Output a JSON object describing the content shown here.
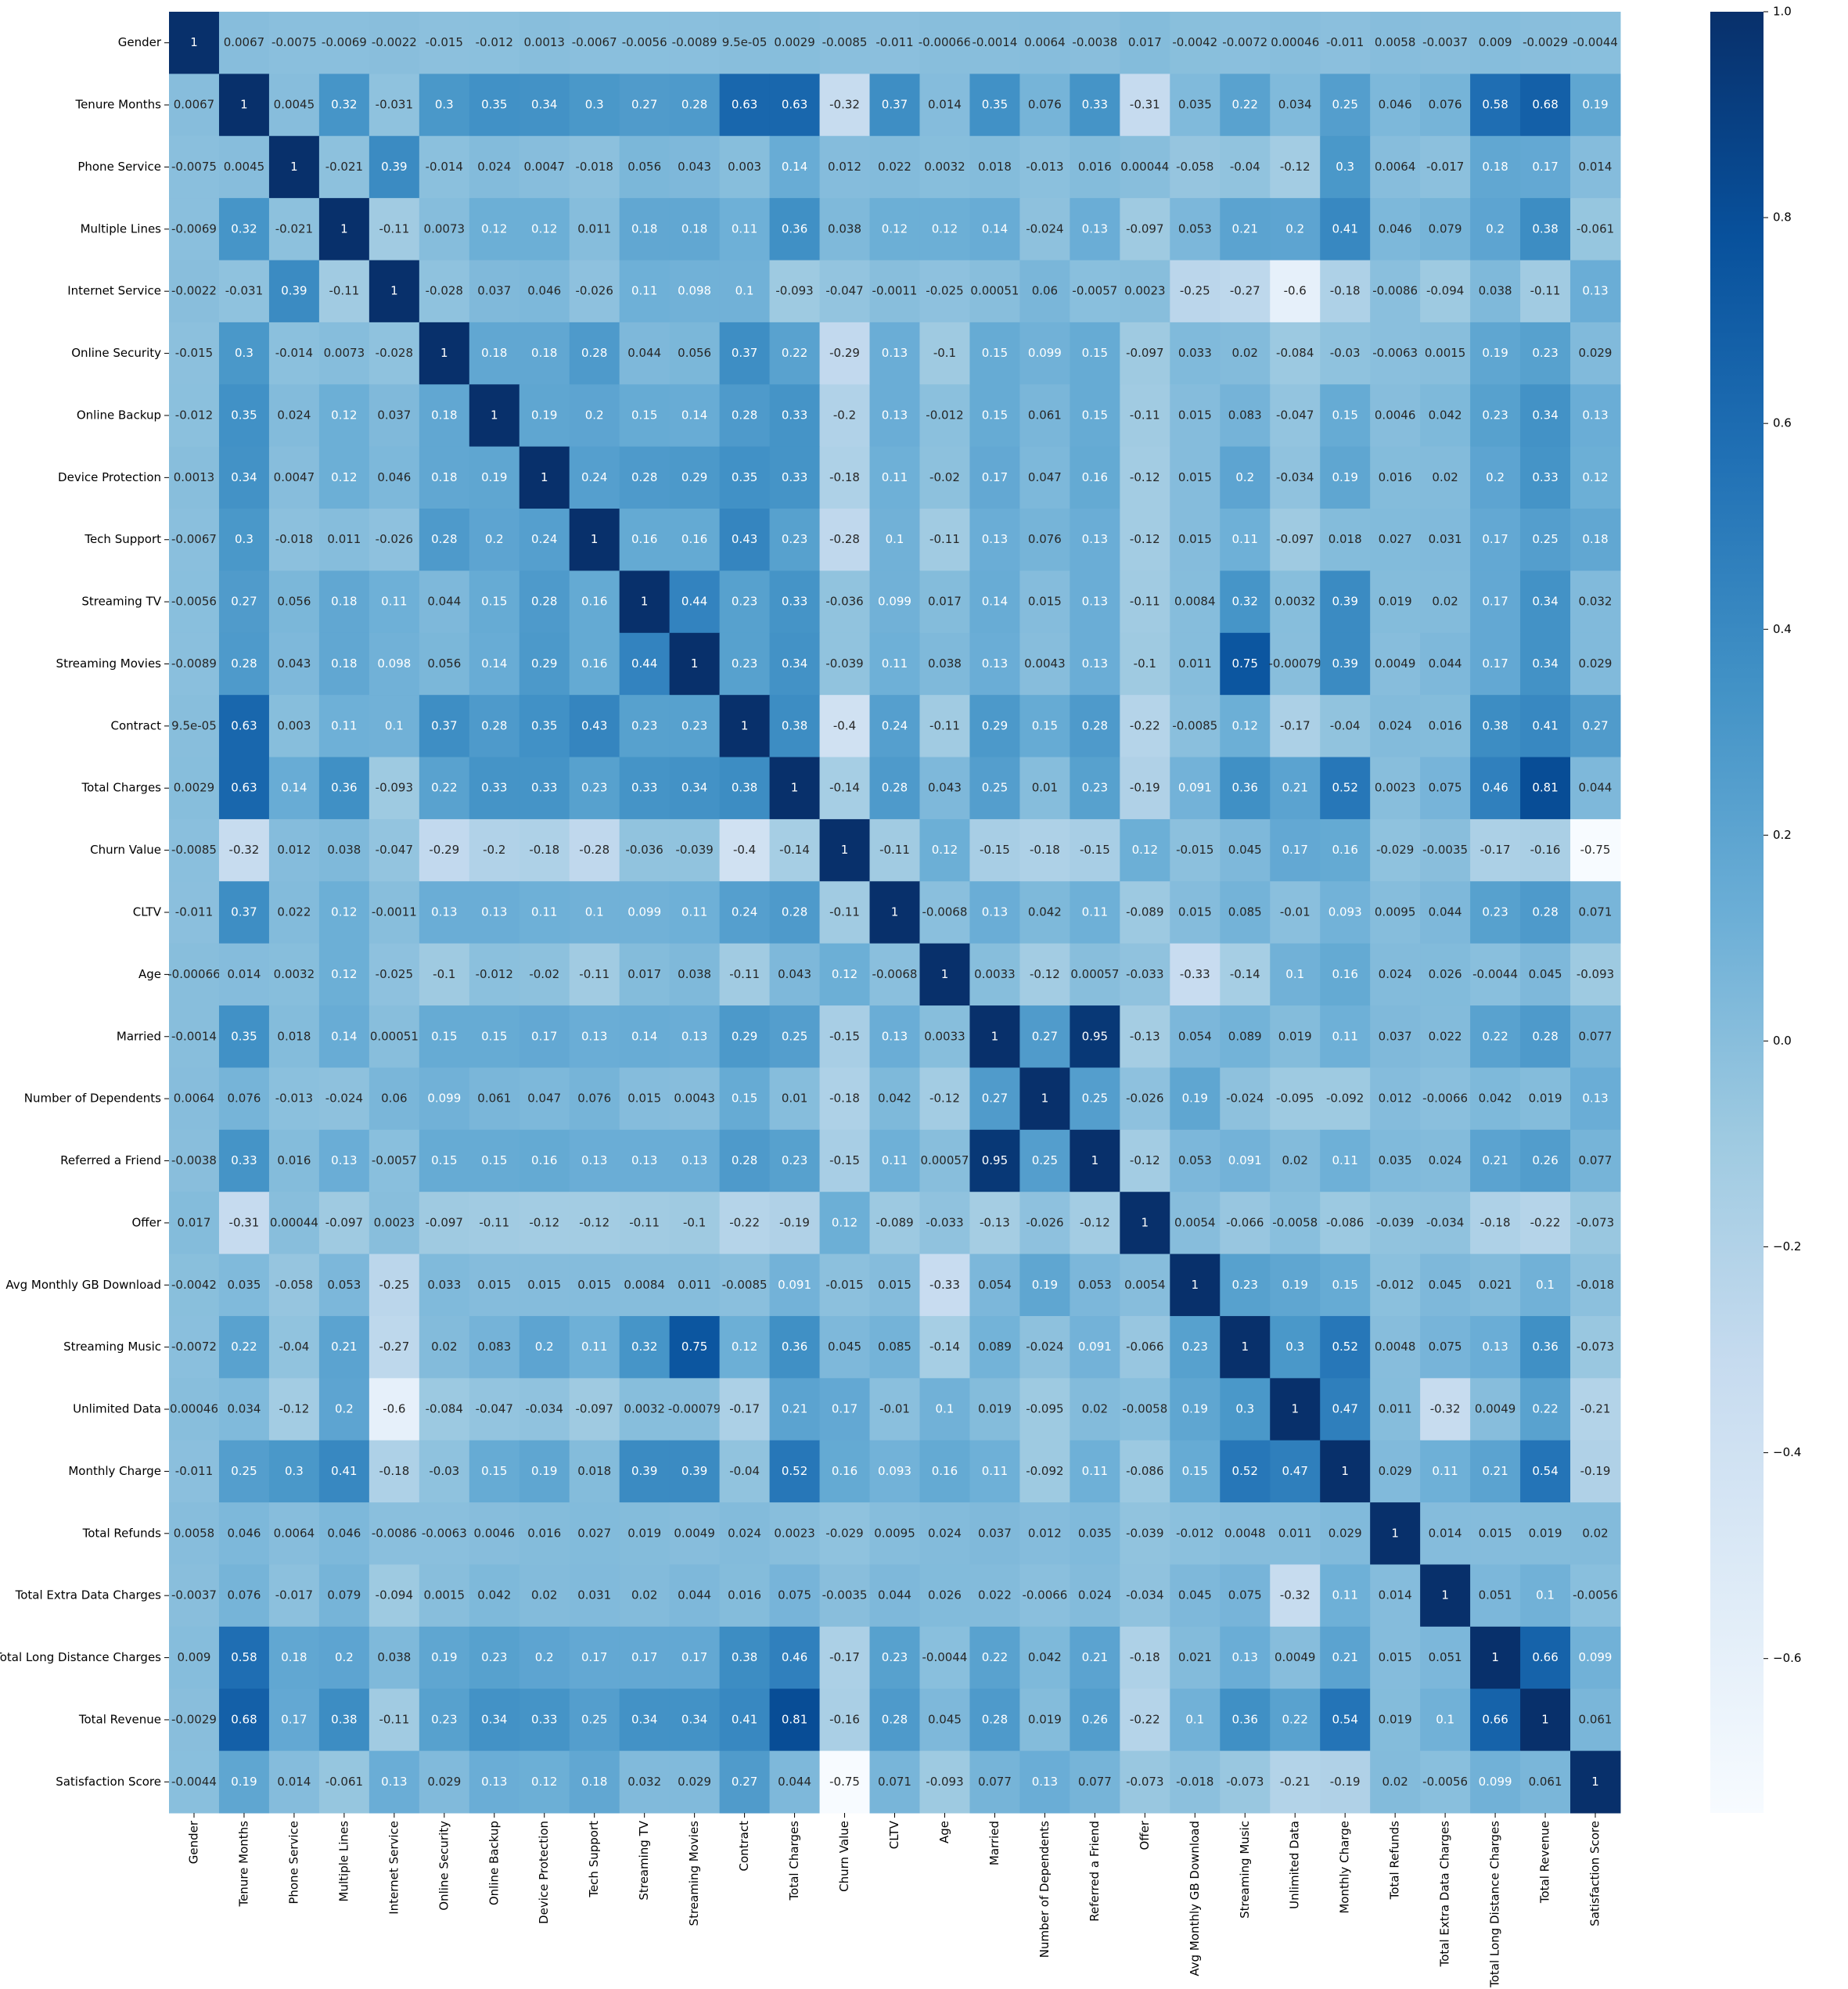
{
  "chart_data": {
    "type": "heatmap",
    "colormap": "Blues",
    "zlim": [
      -0.75,
      1
    ],
    "categories": [
      "Gender",
      "Tenure Months",
      "Phone Service",
      "Multiple Lines",
      "Internet Service",
      "Online Security",
      "Online Backup",
      "Device Protection",
      "Tech Support",
      "Streaming TV",
      "Streaming Movies",
      "Contract",
      "Total Charges",
      "Churn Value",
      "CLTV",
      "Age",
      "Married",
      "Number of Dependents",
      "Referred a Friend",
      "Offer",
      "Avg Monthly GB Download",
      "Streaming Music",
      "Unlimited Data",
      "Monthly Charge",
      "Total Refunds",
      "Total Extra Data Charges",
      "Total Long Distance Charges",
      "Total Revenue",
      "Satisfaction Score"
    ],
    "values": [
      [
        1,
        0.0067,
        -0.0075,
        -0.0069,
        -0.0022,
        -0.015,
        -0.012,
        0.0013,
        -0.0067,
        -0.0056,
        -0.0089,
        {
          "value": 9.5e-05,
          "label": "9.5e-05"
        },
        0.0029,
        -0.0085,
        -0.011,
        -0.00066,
        -0.0014,
        0.0064,
        -0.0038,
        0.017,
        -0.0042,
        -0.0072,
        0.00046,
        -0.011,
        0.0058,
        -0.0037,
        0.009,
        -0.0029,
        -0.0044
      ],
      [
        0.0067,
        1,
        0.0045,
        0.32,
        -0.031,
        0.3,
        0.35,
        0.34,
        0.3,
        0.27,
        0.28,
        0.63,
        0.63,
        -0.32,
        0.37,
        0.014,
        0.35,
        0.076,
        0.33,
        -0.31,
        0.035,
        0.22,
        0.034,
        0.25,
        0.046,
        0.076,
        0.58,
        0.68,
        0.19
      ],
      [
        -0.0075,
        0.0045,
        1,
        -0.021,
        0.39,
        -0.014,
        0.024,
        0.0047,
        -0.018,
        0.056,
        0.043,
        0.003,
        0.14,
        0.012,
        0.022,
        0.0032,
        0.018,
        -0.013,
        0.016,
        0.00044,
        -0.058,
        -0.04,
        -0.12,
        0.3,
        0.0064,
        -0.017,
        0.18,
        0.17,
        0.014
      ],
      [
        -0.0069,
        0.32,
        -0.021,
        1,
        -0.11,
        0.0073,
        0.12,
        0.12,
        0.011,
        0.18,
        0.18,
        0.11,
        0.36,
        0.038,
        0.12,
        0.12,
        0.14,
        -0.024,
        0.13,
        -0.097,
        0.053,
        0.21,
        0.2,
        0.41,
        0.046,
        0.079,
        0.2,
        0.38,
        -0.061
      ],
      [
        -0.0022,
        -0.031,
        0.39,
        -0.11,
        1,
        -0.028,
        0.037,
        0.046,
        -0.026,
        0.11,
        0.098,
        0.1,
        -0.093,
        -0.047,
        -0.0011,
        -0.025,
        0.00051,
        0.06,
        -0.0057,
        0.0023,
        -0.25,
        -0.27,
        -0.6,
        -0.18,
        -0.0086,
        -0.094,
        0.038,
        -0.11,
        0.13
      ],
      [
        -0.015,
        0.3,
        -0.014,
        0.0073,
        -0.028,
        1,
        0.18,
        0.18,
        0.28,
        0.044,
        0.056,
        0.37,
        0.22,
        -0.29,
        0.13,
        -0.1,
        0.15,
        0.099,
        0.15,
        -0.097,
        0.033,
        0.02,
        -0.084,
        -0.03,
        -0.0063,
        0.0015,
        0.19,
        0.23,
        0.029
      ],
      [
        -0.012,
        0.35,
        0.024,
        0.12,
        0.037,
        0.18,
        1,
        0.19,
        0.2,
        0.15,
        0.14,
        0.28,
        0.33,
        -0.2,
        0.13,
        -0.012,
        0.15,
        0.061,
        0.15,
        -0.11,
        0.015,
        0.083,
        -0.047,
        0.15,
        0.0046,
        0.042,
        0.23,
        0.34,
        0.13
      ],
      [
        0.0013,
        0.34,
        0.0047,
        0.12,
        0.046,
        0.18,
        0.19,
        1,
        0.24,
        0.28,
        0.29,
        0.35,
        0.33,
        -0.18,
        0.11,
        -0.02,
        0.17,
        0.047,
        0.16,
        -0.12,
        0.015,
        0.2,
        -0.034,
        0.19,
        0.016,
        0.02,
        0.2,
        0.33,
        0.12
      ],
      [
        -0.0067,
        0.3,
        -0.018,
        0.011,
        -0.026,
        0.28,
        0.2,
        0.24,
        1,
        0.16,
        0.16,
        0.43,
        0.23,
        -0.28,
        0.1,
        -0.11,
        0.13,
        0.076,
        0.13,
        -0.12,
        0.015,
        0.11,
        -0.097,
        0.018,
        0.027,
        0.031,
        0.17,
        0.25,
        0.18
      ],
      [
        -0.0056,
        0.27,
        0.056,
        0.18,
        0.11,
        0.044,
        0.15,
        0.28,
        0.16,
        1,
        0.44,
        0.23,
        0.33,
        -0.036,
        0.099,
        0.017,
        0.14,
        0.015,
        0.13,
        -0.11,
        0.0084,
        0.32,
        0.0032,
        0.39,
        0.019,
        0.02,
        0.17,
        0.34,
        0.032
      ],
      [
        -0.0089,
        0.28,
        0.043,
        0.18,
        0.098,
        0.056,
        0.14,
        0.29,
        0.16,
        0.44,
        1,
        0.23,
        0.34,
        -0.039,
        0.11,
        0.038,
        0.13,
        0.0043,
        0.13,
        -0.1,
        0.011,
        0.75,
        -0.00079,
        0.39,
        0.0049,
        0.044,
        0.17,
        0.34,
        0.029
      ],
      [
        {
          "value": 9.5e-05,
          "label": "9.5e-05"
        },
        0.63,
        0.003,
        0.11,
        0.1,
        0.37,
        0.28,
        0.35,
        0.43,
        0.23,
        0.23,
        1,
        0.38,
        -0.4,
        0.24,
        -0.11,
        0.29,
        0.15,
        0.28,
        -0.22,
        -0.0085,
        0.12,
        -0.17,
        -0.04,
        0.024,
        0.016,
        0.38,
        0.41,
        0.27
      ],
      [
        0.0029,
        0.63,
        0.14,
        0.36,
        -0.093,
        0.22,
        0.33,
        0.33,
        0.23,
        0.33,
        0.34,
        0.38,
        1,
        -0.14,
        0.28,
        0.043,
        0.25,
        0.01,
        0.23,
        -0.19,
        0.091,
        0.36,
        0.21,
        0.52,
        0.0023,
        0.075,
        0.46,
        0.81,
        0.044
      ],
      [
        -0.0085,
        -0.32,
        0.012,
        0.038,
        -0.047,
        -0.29,
        -0.2,
        -0.18,
        -0.28,
        -0.036,
        -0.039,
        -0.4,
        -0.14,
        1,
        -0.11,
        0.12,
        -0.15,
        -0.18,
        -0.15,
        0.12,
        -0.015,
        0.045,
        0.17,
        0.16,
        -0.029,
        -0.0035,
        -0.17,
        -0.16,
        -0.75
      ],
      [
        -0.011,
        0.37,
        0.022,
        0.12,
        -0.0011,
        0.13,
        0.13,
        0.11,
        0.1,
        0.099,
        0.11,
        0.24,
        0.28,
        -0.11,
        1,
        -0.0068,
        0.13,
        0.042,
        0.11,
        -0.089,
        0.015,
        0.085,
        -0.01,
        0.093,
        0.0095,
        0.044,
        0.23,
        0.28,
        0.071
      ],
      [
        -0.00066,
        0.014,
        0.0032,
        0.12,
        -0.025,
        -0.1,
        -0.012,
        -0.02,
        -0.11,
        0.017,
        0.038,
        -0.11,
        0.043,
        0.12,
        -0.0068,
        1,
        0.0033,
        -0.12,
        0.00057,
        -0.033,
        -0.33,
        -0.14,
        0.1,
        0.16,
        0.024,
        0.026,
        -0.0044,
        0.045,
        -0.093
      ],
      [
        -0.0014,
        0.35,
        0.018,
        0.14,
        0.00051,
        0.15,
        0.15,
        0.17,
        0.13,
        0.14,
        0.13,
        0.29,
        0.25,
        -0.15,
        0.13,
        0.0033,
        1,
        0.27,
        0.95,
        -0.13,
        0.054,
        0.089,
        0.019,
        0.11,
        0.037,
        0.022,
        0.22,
        0.28,
        0.077
      ],
      [
        0.0064,
        0.076,
        -0.013,
        -0.024,
        0.06,
        0.099,
        0.061,
        0.047,
        0.076,
        0.015,
        0.0043,
        0.15,
        0.01,
        -0.18,
        0.042,
        -0.12,
        0.27,
        1,
        0.25,
        -0.026,
        0.19,
        -0.024,
        -0.095,
        -0.092,
        0.012,
        -0.0066,
        0.042,
        0.019,
        0.13
      ],
      [
        -0.0038,
        0.33,
        0.016,
        0.13,
        -0.0057,
        0.15,
        0.15,
        0.16,
        0.13,
        0.13,
        0.13,
        0.28,
        0.23,
        -0.15,
        0.11,
        0.00057,
        0.95,
        0.25,
        1,
        -0.12,
        0.053,
        0.091,
        0.02,
        0.11,
        0.035,
        0.024,
        0.21,
        0.26,
        0.077
      ],
      [
        0.017,
        -0.31,
        0.00044,
        -0.097,
        0.0023,
        -0.097,
        -0.11,
        -0.12,
        -0.12,
        -0.11,
        -0.1,
        -0.22,
        -0.19,
        0.12,
        -0.089,
        -0.033,
        -0.13,
        -0.026,
        -0.12,
        1,
        0.0054,
        -0.066,
        -0.0058,
        -0.086,
        -0.039,
        -0.034,
        -0.18,
        -0.22,
        -0.073
      ],
      [
        -0.0042,
        0.035,
        -0.058,
        0.053,
        -0.25,
        0.033,
        0.015,
        0.015,
        0.015,
        0.0084,
        0.011,
        -0.0085,
        0.091,
        -0.015,
        0.015,
        -0.33,
        0.054,
        0.19,
        0.053,
        0.0054,
        1,
        0.23,
        0.19,
        0.15,
        -0.012,
        0.045,
        0.021,
        0.1,
        -0.018
      ],
      [
        -0.0072,
        0.22,
        -0.04,
        0.21,
        -0.27,
        0.02,
        0.083,
        0.2,
        0.11,
        0.32,
        0.75,
        0.12,
        0.36,
        0.045,
        0.085,
        -0.14,
        0.089,
        -0.024,
        0.091,
        -0.066,
        0.23,
        1,
        0.3,
        0.52,
        0.0048,
        0.075,
        0.13,
        0.36,
        -0.073
      ],
      [
        0.00046,
        0.034,
        -0.12,
        0.2,
        -0.6,
        -0.084,
        -0.047,
        -0.034,
        -0.097,
        0.0032,
        -0.00079,
        -0.17,
        0.21,
        0.17,
        -0.01,
        0.1,
        0.019,
        -0.095,
        0.02,
        -0.0058,
        0.19,
        0.3,
        1,
        0.47,
        0.011,
        -0.32,
        0.0049,
        0.22,
        -0.21
      ],
      [
        -0.011,
        0.25,
        0.3,
        0.41,
        -0.18,
        -0.03,
        0.15,
        0.19,
        0.018,
        0.39,
        0.39,
        -0.04,
        0.52,
        0.16,
        0.093,
        0.16,
        0.11,
        -0.092,
        0.11,
        -0.086,
        0.15,
        0.52,
        0.47,
        1,
        0.029,
        0.11,
        0.21,
        0.54,
        -0.19
      ],
      [
        0.0058,
        0.046,
        0.0064,
        0.046,
        -0.0086,
        -0.0063,
        0.0046,
        0.016,
        0.027,
        0.019,
        0.0049,
        0.024,
        0.0023,
        -0.029,
        0.0095,
        0.024,
        0.037,
        0.012,
        0.035,
        -0.039,
        -0.012,
        0.0048,
        0.011,
        0.029,
        1,
        0.014,
        0.015,
        0.019,
        0.02
      ],
      [
        -0.0037,
        0.076,
        -0.017,
        0.079,
        -0.094,
        0.0015,
        0.042,
        0.02,
        0.031,
        0.02,
        0.044,
        0.016,
        0.075,
        -0.0035,
        0.044,
        0.026,
        0.022,
        -0.0066,
        0.024,
        -0.034,
        0.045,
        0.075,
        -0.32,
        0.11,
        0.014,
        1,
        0.051,
        0.1,
        -0.0056
      ],
      [
        0.009,
        0.58,
        0.18,
        0.2,
        0.038,
        0.19,
        0.23,
        0.2,
        0.17,
        0.17,
        0.17,
        0.38,
        0.46,
        -0.17,
        0.23,
        -0.0044,
        0.22,
        0.042,
        0.21,
        -0.18,
        0.021,
        0.13,
        0.0049,
        0.21,
        0.015,
        0.051,
        1,
        0.66,
        0.099
      ],
      [
        -0.0029,
        0.68,
        0.17,
        0.38,
        -0.11,
        0.23,
        0.34,
        0.33,
        0.25,
        0.34,
        0.34,
        0.41,
        0.81,
        -0.16,
        0.28,
        0.045,
        0.28,
        0.019,
        0.26,
        -0.22,
        0.1,
        0.36,
        0.22,
        0.54,
        0.019,
        0.1,
        0.66,
        1,
        0.061
      ],
      [
        -0.0044,
        0.19,
        0.014,
        -0.061,
        0.13,
        0.029,
        0.13,
        0.12,
        0.18,
        0.032,
        0.029,
        0.27,
        0.044,
        -0.75,
        0.071,
        -0.093,
        0.077,
        0.13,
        0.077,
        -0.073,
        -0.018,
        -0.073,
        -0.21,
        -0.19,
        0.02,
        -0.0056,
        0.099,
        0.061,
        1
      ]
    ],
    "colorbar_ticks": [
      {
        "value": -0.6,
        "label": "−0.6"
      },
      {
        "value": -0.4,
        "label": "−0.4"
      },
      {
        "value": -0.2,
        "label": "−0.2"
      },
      {
        "value": 0,
        "label": "0.0"
      },
      0.2,
      0.4,
      0.6,
      0.8,
      {
        "value": 1,
        "label": "1.0"
      }
    ]
  }
}
